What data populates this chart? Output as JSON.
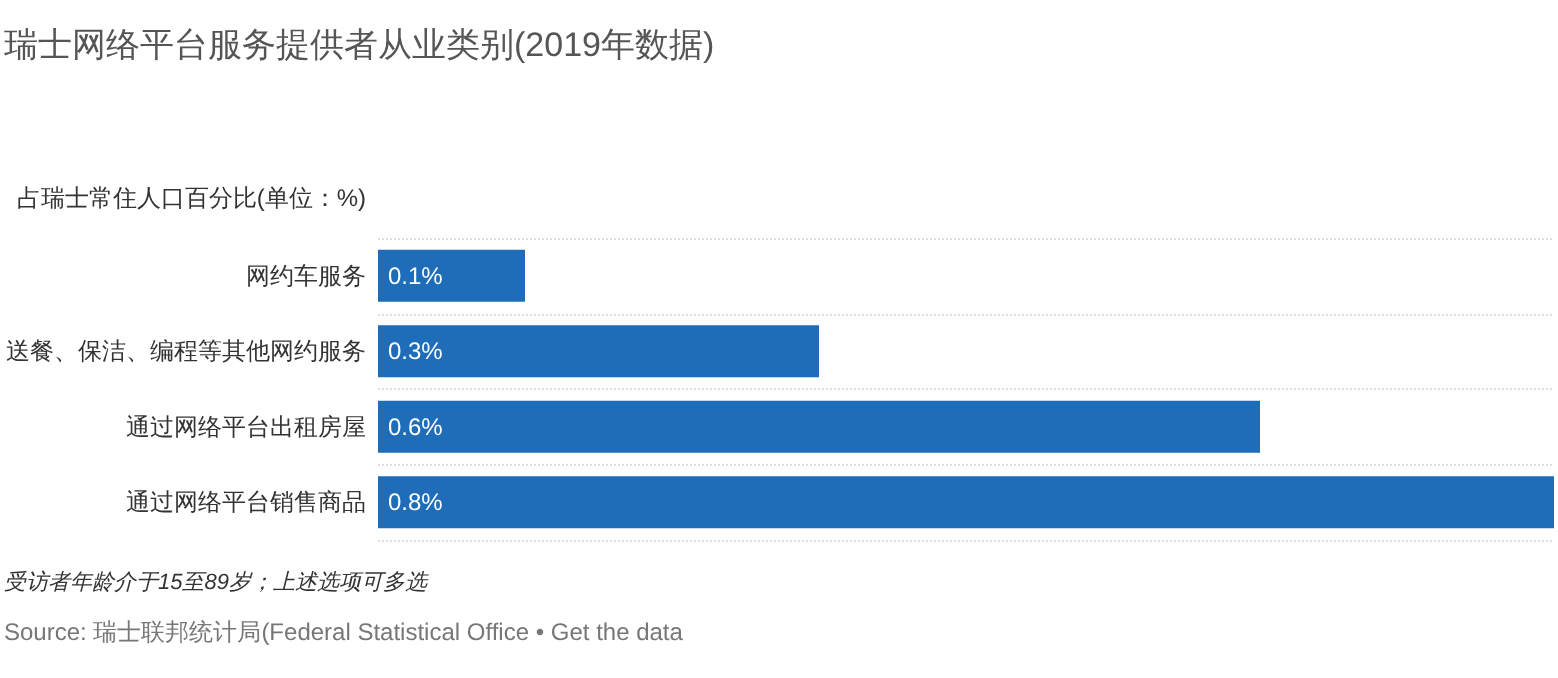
{
  "chart_data": {
    "type": "bar",
    "orientation": "horizontal",
    "title": "瑞士网络平台服务提供者从业类别(2019年数据)",
    "subtitle": "占瑞士常住人口百分比(单位：%)",
    "categories": [
      "网约车服务",
      "送餐、保洁、编程等其他网约服务",
      "通过网络平台出租房屋",
      "通过网络平台销售商品"
    ],
    "values": [
      0.1,
      0.3,
      0.6,
      0.8
    ],
    "value_labels": [
      "0.1%",
      "0.3%",
      "0.6%",
      "0.8%"
    ],
    "color": "#1f6db8",
    "grid": "y",
    "annotations": [
      "受访者年龄介于15至89岁；上述选项可多选",
      "Source: 瑞士联邦统计局(Federal Statistical Office • Get the data"
    ]
  }
}
